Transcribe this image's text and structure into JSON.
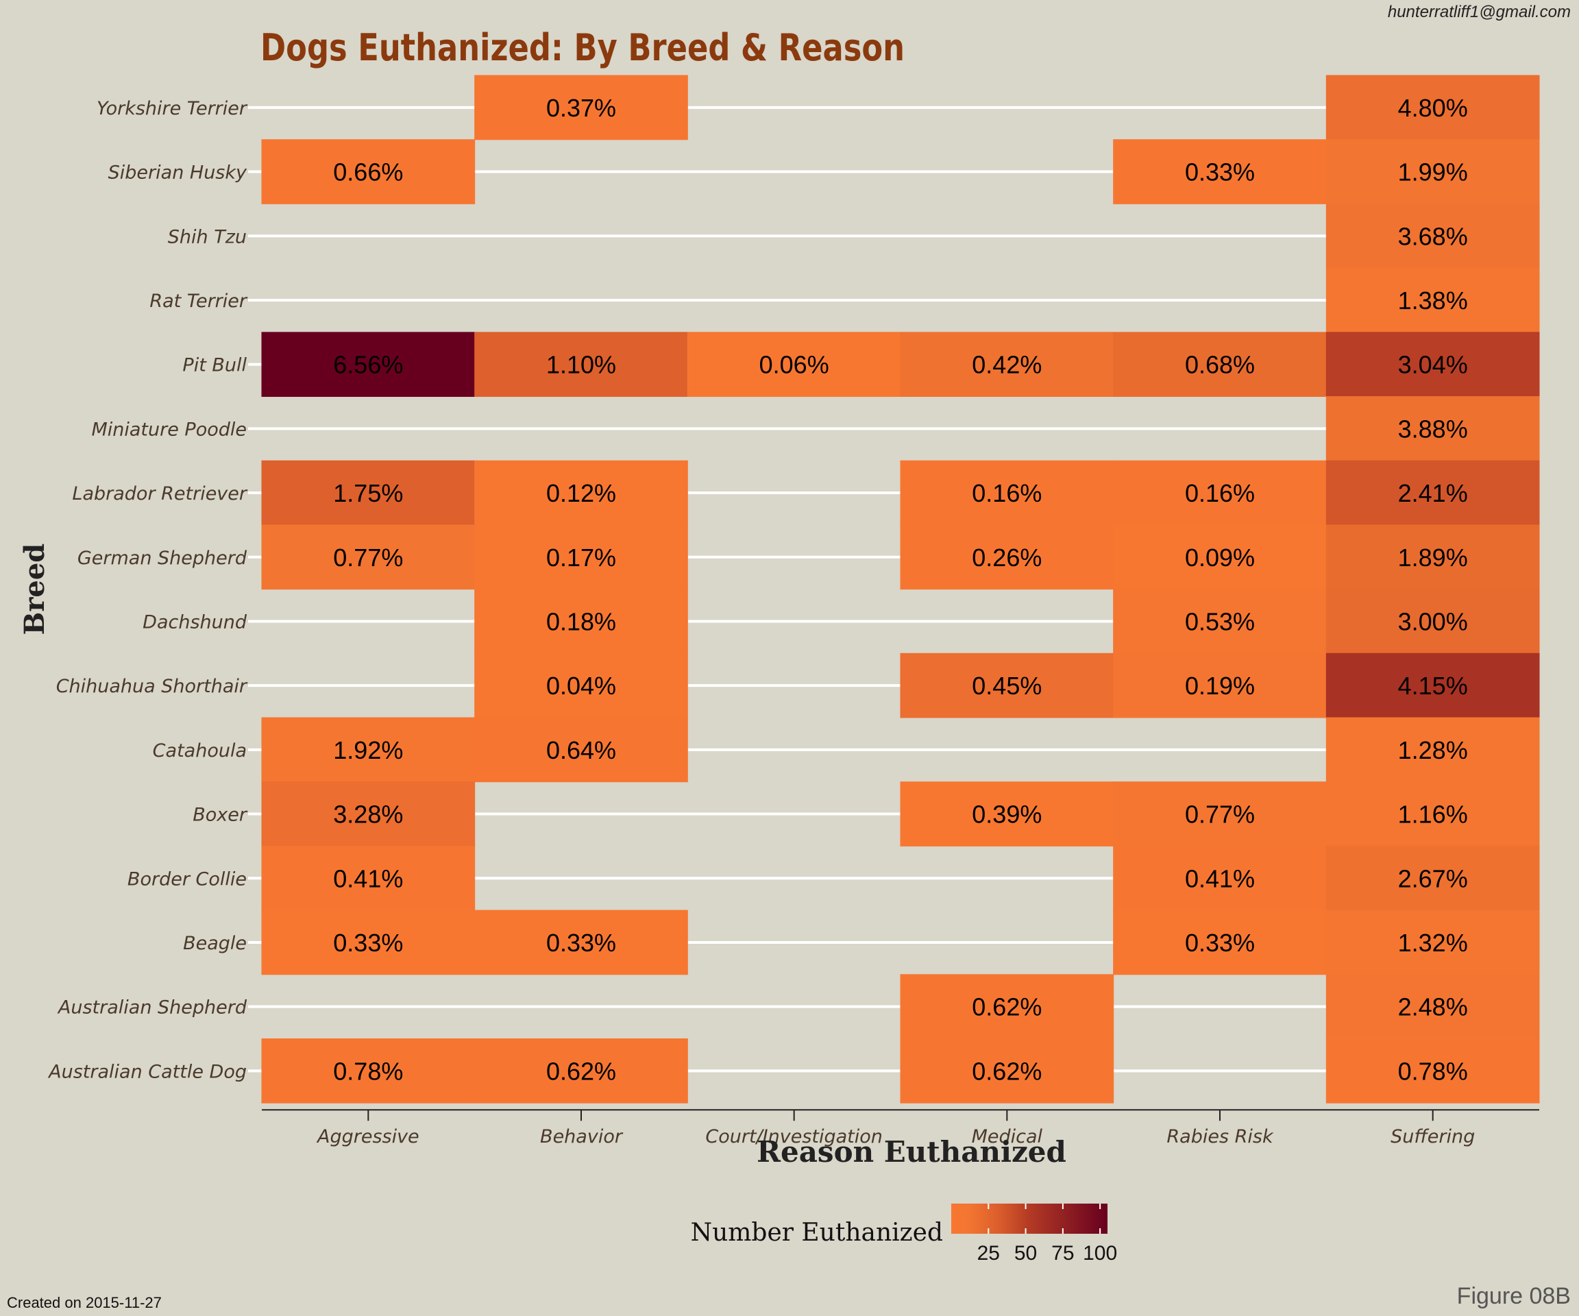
{
  "header": {
    "email": "hunterratliff1@gmail.com",
    "created": "Created on 2015-11-27",
    "figure": "Figure 08B"
  },
  "chart_data": {
    "type": "heatmap",
    "title": "Dogs Euthanized: By Breed & Reason",
    "xlabel": "Reason Euthanized",
    "ylabel": "Breed",
    "x_categories": [
      "Aggressive",
      "Behavior",
      "Court/Investigation",
      "Medical",
      "Rabies Risk",
      "Suffering"
    ],
    "y_categories": [
      "Yorkshire Terrier",
      "Siberian Husky",
      "Shih Tzu",
      "Rat Terrier",
      "Pit Bull",
      "Miniature Poodle",
      "Labrador Retriever",
      "German Shepherd",
      "Dachshund",
      "Chihuahua Shorthair",
      "Catahoula",
      "Boxer",
      "Border Collie",
      "Beagle",
      "Australian Shepherd",
      "Australian Cattle Dog"
    ],
    "cells": [
      {
        "breed": "Yorkshire Terrier",
        "reason": "Behavior",
        "label": "0.37%",
        "count": 4
      },
      {
        "breed": "Yorkshire Terrier",
        "reason": "Suffering",
        "label": "4.80%",
        "count": 18
      },
      {
        "breed": "Siberian Husky",
        "reason": "Aggressive",
        "label": "0.66%",
        "count": 5
      },
      {
        "breed": "Siberian Husky",
        "reason": "Rabies Risk",
        "label": "0.33%",
        "count": 5
      },
      {
        "breed": "Siberian Husky",
        "reason": "Suffering",
        "label": "1.99%",
        "count": 12
      },
      {
        "breed": "Shih Tzu",
        "reason": "Suffering",
        "label": "3.68%",
        "count": 14
      },
      {
        "breed": "Rat Terrier",
        "reason": "Suffering",
        "label": "1.38%",
        "count": 8
      },
      {
        "breed": "Pit Bull",
        "reason": "Aggressive",
        "label": "6.56%",
        "count": 105
      },
      {
        "breed": "Pit Bull",
        "reason": "Behavior",
        "label": "1.10%",
        "count": 30
      },
      {
        "breed": "Pit Bull",
        "reason": "Court/Investigation",
        "label": "0.06%",
        "count": 2
      },
      {
        "breed": "Pit Bull",
        "reason": "Medical",
        "label": "0.42%",
        "count": 15
      },
      {
        "breed": "Pit Bull",
        "reason": "Rabies Risk",
        "label": "0.68%",
        "count": 20
      },
      {
        "breed": "Pit Bull",
        "reason": "Suffering",
        "label": "3.04%",
        "count": 50
      },
      {
        "breed": "Miniature Poodle",
        "reason": "Suffering",
        "label": "3.88%",
        "count": 16
      },
      {
        "breed": "Labrador Retriever",
        "reason": "Aggressive",
        "label": "1.75%",
        "count": 30
      },
      {
        "breed": "Labrador Retriever",
        "reason": "Behavior",
        "label": "0.12%",
        "count": 3
      },
      {
        "breed": "Labrador Retriever",
        "reason": "Medical",
        "label": "0.16%",
        "count": 4
      },
      {
        "breed": "Labrador Retriever",
        "reason": "Rabies Risk",
        "label": "0.16%",
        "count": 4
      },
      {
        "breed": "Labrador Retriever",
        "reason": "Suffering",
        "label": "2.41%",
        "count": 36
      },
      {
        "breed": "German Shepherd",
        "reason": "Aggressive",
        "label": "0.77%",
        "count": 12
      },
      {
        "breed": "German Shepherd",
        "reason": "Behavior",
        "label": "0.17%",
        "count": 3
      },
      {
        "breed": "German Shepherd",
        "reason": "Medical",
        "label": "0.26%",
        "count": 5
      },
      {
        "breed": "German Shepherd",
        "reason": "Rabies Risk",
        "label": "0.09%",
        "count": 2
      },
      {
        "breed": "German Shepherd",
        "reason": "Suffering",
        "label": "1.89%",
        "count": 20
      },
      {
        "breed": "Dachshund",
        "reason": "Behavior",
        "label": "0.18%",
        "count": 3
      },
      {
        "breed": "Dachshund",
        "reason": "Rabies Risk",
        "label": "0.53%",
        "count": 6
      },
      {
        "breed": "Dachshund",
        "reason": "Suffering",
        "label": "3.00%",
        "count": 22
      },
      {
        "breed": "Chihuahua Shorthair",
        "reason": "Behavior",
        "label": "0.04%",
        "count": 2
      },
      {
        "breed": "Chihuahua Shorthair",
        "reason": "Medical",
        "label": "0.45%",
        "count": 18
      },
      {
        "breed": "Chihuahua Shorthair",
        "reason": "Rabies Risk",
        "label": "0.19%",
        "count": 10
      },
      {
        "breed": "Chihuahua Shorthair",
        "reason": "Suffering",
        "label": "4.15%",
        "count": 60
      },
      {
        "breed": "Catahoula",
        "reason": "Aggressive",
        "label": "1.92%",
        "count": 9
      },
      {
        "breed": "Catahoula",
        "reason": "Behavior",
        "label": "0.64%",
        "count": 4
      },
      {
        "breed": "Catahoula",
        "reason": "Suffering",
        "label": "1.28%",
        "count": 6
      },
      {
        "breed": "Boxer",
        "reason": "Aggressive",
        "label": "3.28%",
        "count": 18
      },
      {
        "breed": "Boxer",
        "reason": "Medical",
        "label": "0.39%",
        "count": 3
      },
      {
        "breed": "Boxer",
        "reason": "Rabies Risk",
        "label": "0.77%",
        "count": 6
      },
      {
        "breed": "Boxer",
        "reason": "Suffering",
        "label": "1.16%",
        "count": 8
      },
      {
        "breed": "Border Collie",
        "reason": "Aggressive",
        "label": "0.41%",
        "count": 4
      },
      {
        "breed": "Border Collie",
        "reason": "Rabies Risk",
        "label": "0.41%",
        "count": 4
      },
      {
        "breed": "Border Collie",
        "reason": "Suffering",
        "label": "2.67%",
        "count": 16
      },
      {
        "breed": "Beagle",
        "reason": "Aggressive",
        "label": "0.33%",
        "count": 2
      },
      {
        "breed": "Beagle",
        "reason": "Behavior",
        "label": "0.33%",
        "count": 2
      },
      {
        "breed": "Beagle",
        "reason": "Rabies Risk",
        "label": "0.33%",
        "count": 2
      },
      {
        "breed": "Beagle",
        "reason": "Suffering",
        "label": "1.32%",
        "count": 6
      },
      {
        "breed": "Australian Shepherd",
        "reason": "Medical",
        "label": "0.62%",
        "count": 4
      },
      {
        "breed": "Australian Shepherd",
        "reason": "Suffering",
        "label": "2.48%",
        "count": 10
      },
      {
        "breed": "Australian Cattle Dog",
        "reason": "Aggressive",
        "label": "0.78%",
        "count": 4
      },
      {
        "breed": "Australian Cattle Dog",
        "reason": "Behavior",
        "label": "0.62%",
        "count": 4
      },
      {
        "breed": "Australian Cattle Dog",
        "reason": "Medical",
        "label": "0.62%",
        "count": 4
      },
      {
        "breed": "Australian Cattle Dog",
        "reason": "Suffering",
        "label": "0.78%",
        "count": 4
      }
    ],
    "legend": {
      "title": "Number Euthanized",
      "ticks": [
        25,
        50,
        75,
        100
      ],
      "range": [
        0,
        105
      ],
      "low_color": "#f87731",
      "high_color": "#67001f",
      "position": "bottom"
    },
    "grid": true,
    "colors": {
      "title": "#8b3a0e",
      "background": "#d9d6ca",
      "gridline": "#ffffff",
      "breed_label": "#4a3a2a",
      "reason_label": "#4a3a2a"
    }
  }
}
